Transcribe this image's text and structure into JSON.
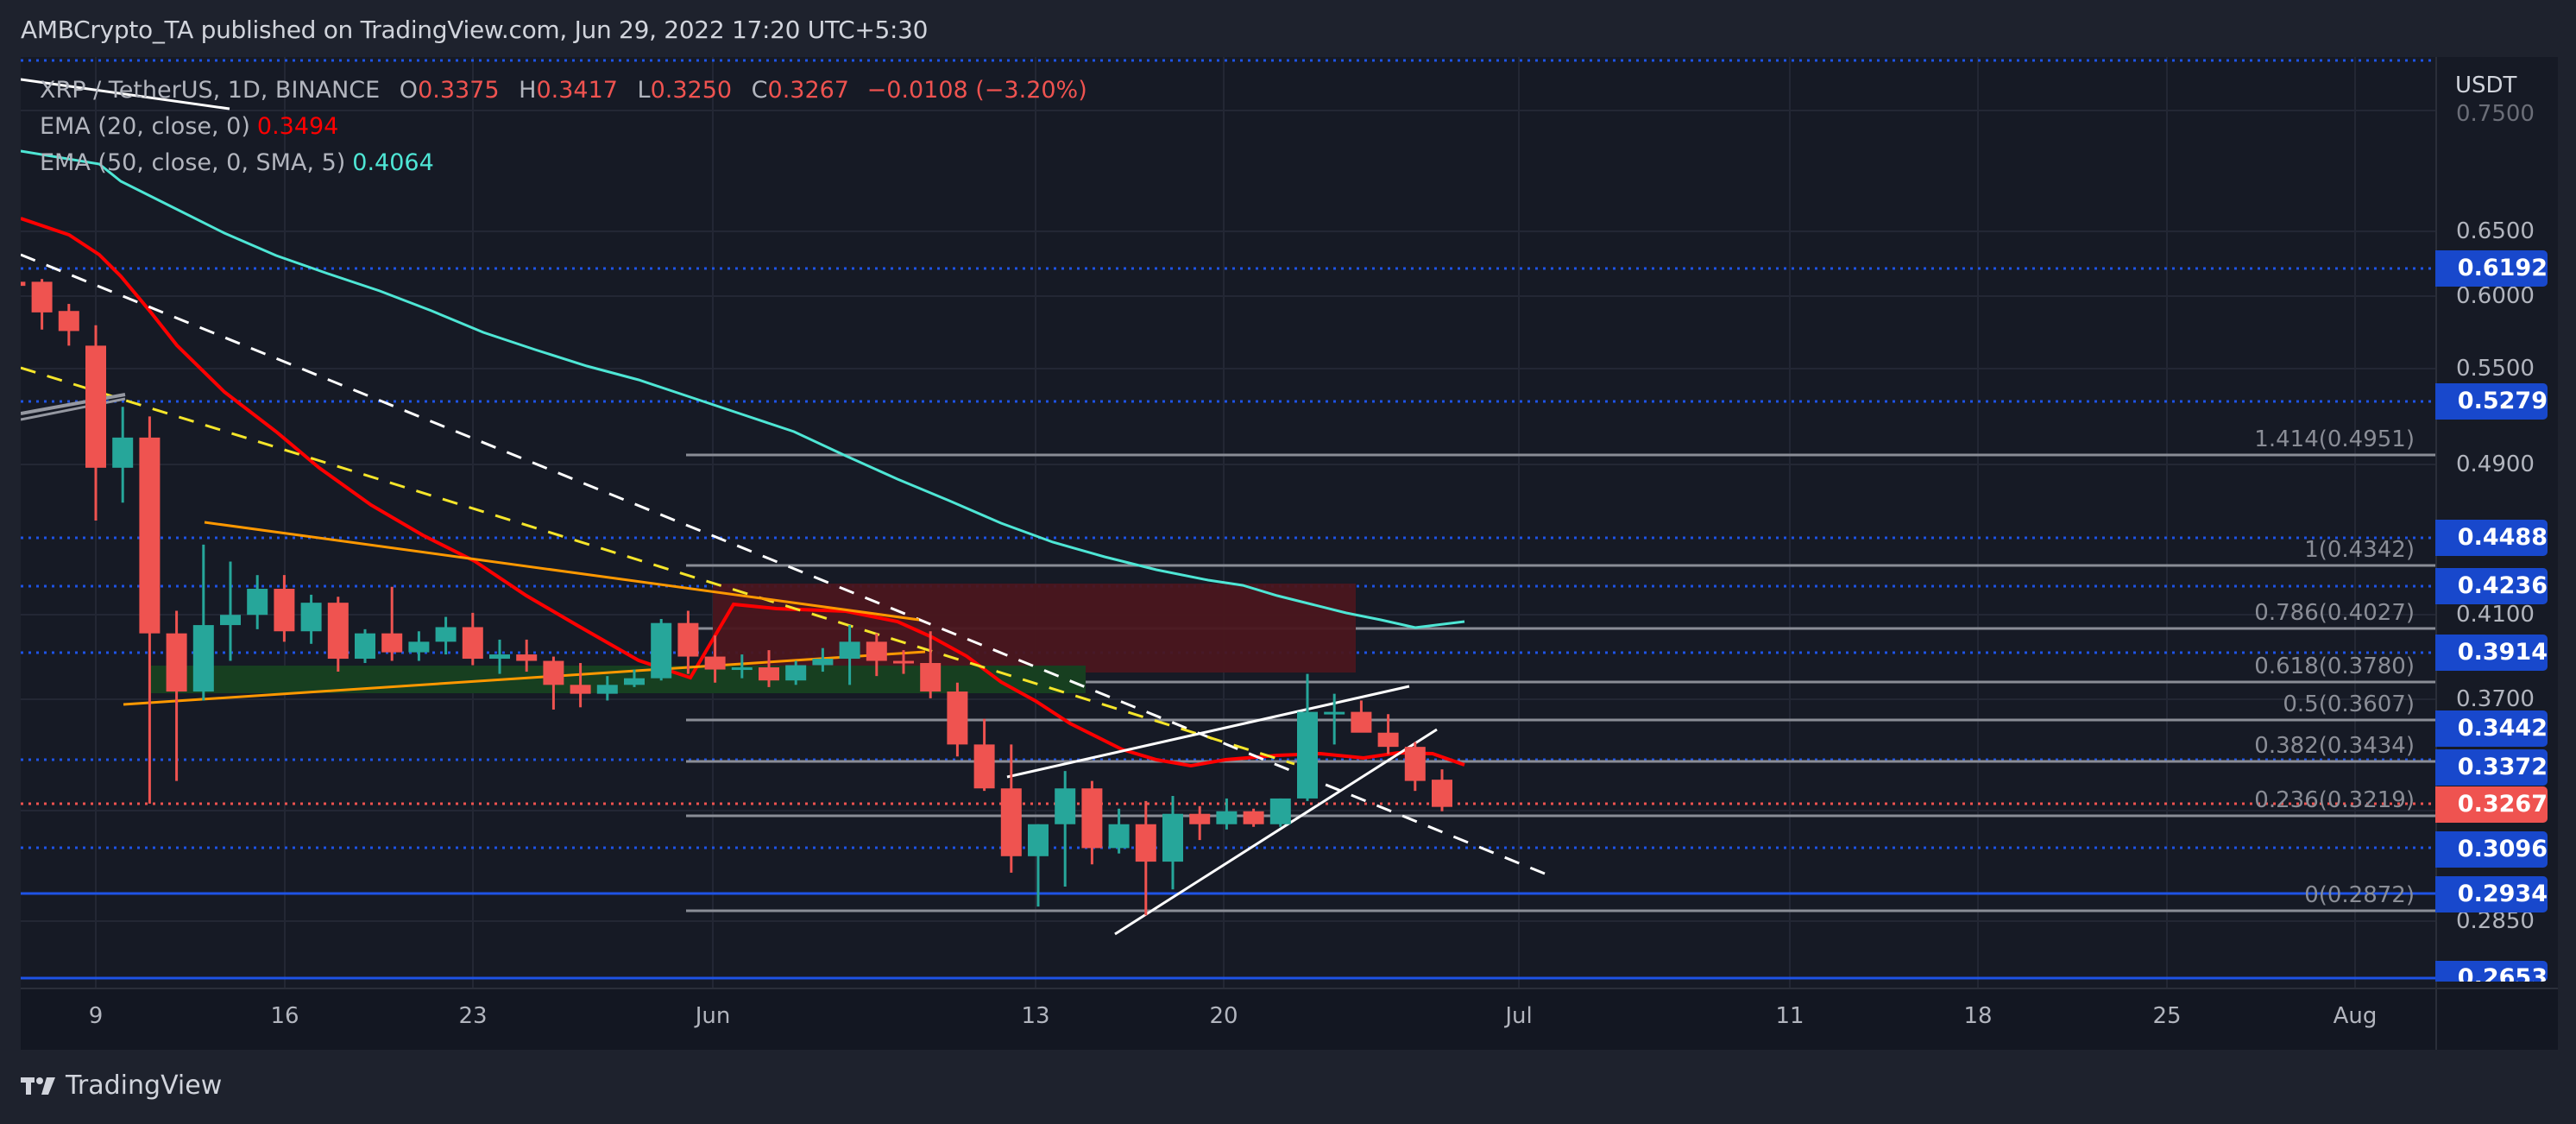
{
  "header": {
    "published": "AMBCrypto_TA published on TradingView.com, Jun 29, 2022 17:20 UTC+5:30"
  },
  "legend": {
    "symbol": "XRP / TetherUS, 1D, BINANCE",
    "open_key": "O",
    "open": "0.3375",
    "high_key": "H",
    "high": "0.3417",
    "low_key": "L",
    "low": "0.3250",
    "close_key": "C",
    "close": "0.3267",
    "change": "−0.0108 (−3.20%)",
    "ema20_label": "EMA (20, close, 0)",
    "ema20_value": "0.3494",
    "ema50_label": "EMA (50, close, 0, SMA, 5)",
    "ema50_value": "0.4064"
  },
  "price_axis": {
    "currency": "USDT",
    "ticks": [
      "0.7500",
      "0.6500",
      "0.6000",
      "0.5500",
      "0.4900",
      "0.4100",
      "0.3700",
      "0.2850"
    ],
    "badges": [
      "0.6192",
      "0.5279",
      "0.4488",
      "0.4236",
      "0.3914",
      "0.3442",
      "0.3372",
      "0.3267",
      "0.3096",
      "0.2934",
      "0.2653"
    ],
    "current_price": "0.3267"
  },
  "time_axis": {
    "labels": [
      "9",
      "16",
      "23",
      "Jun",
      "13",
      "20",
      "Jul",
      "11",
      "18",
      "25",
      "Aug"
    ]
  },
  "fib_levels": [
    "1.414(0.4951)",
    "1(0.4342)",
    "0.786(0.4027)",
    "0.618(0.3780)",
    "0.5(0.3607)",
    "0.382(0.3434)",
    "0.236(0.3219)",
    "0(0.2872)"
  ],
  "footer": {
    "brand": "TradingView"
  },
  "colors": {
    "bull": "#26a69a",
    "bear": "#ef5350",
    "ema20": "#ff0000",
    "ema50": "#4ee6d5",
    "level_line": "#1e53e5",
    "background": "#161a25"
  },
  "chart_data": {
    "type": "candlestick",
    "title": "XRP / TetherUS, 1D, BINANCE",
    "xlabel": "",
    "ylabel": "USDT",
    "y_scale": "log",
    "ylim": [
      0.26,
      0.78
    ],
    "x_ticks": [
      "9",
      "16",
      "23",
      "Jun",
      "13",
      "20",
      "Jul",
      "11",
      "18",
      "25",
      "Aug"
    ],
    "y_ticks": [
      0.75,
      0.65,
      0.6,
      0.55,
      0.49,
      0.41,
      0.37,
      0.285
    ],
    "ohlc_last": {
      "open": 0.3375,
      "high": 0.3417,
      "low": 0.325,
      "close": 0.3267,
      "change": -0.0108,
      "change_pct": -3.2
    },
    "candles": [
      {
        "date": "2022-05-06",
        "o": 0.612,
        "h": 0.613,
        "l": 0.605,
        "c": 0.609
      },
      {
        "date": "2022-05-07",
        "o": 0.612,
        "h": 0.614,
        "l": 0.578,
        "c": 0.59
      },
      {
        "date": "2022-05-08",
        "o": 0.591,
        "h": 0.596,
        "l": 0.567,
        "c": 0.577
      },
      {
        "date": "2022-05-09",
        "o": 0.567,
        "h": 0.581,
        "l": 0.46,
        "c": 0.49
      },
      {
        "date": "2022-05-10",
        "o": 0.49,
        "h": 0.527,
        "l": 0.47,
        "c": 0.508
      },
      {
        "date": "2022-05-11",
        "o": 0.508,
        "h": 0.521,
        "l": 0.328,
        "c": 0.402
      },
      {
        "date": "2022-05-12",
        "o": 0.402,
        "h": 0.413,
        "l": 0.337,
        "c": 0.375
      },
      {
        "date": "2022-05-13",
        "o": 0.375,
        "h": 0.447,
        "l": 0.371,
        "c": 0.406
      },
      {
        "date": "2022-05-14",
        "o": 0.406,
        "h": 0.438,
        "l": 0.389,
        "c": 0.411
      },
      {
        "date": "2022-05-15",
        "o": 0.411,
        "h": 0.431,
        "l": 0.404,
        "c": 0.424
      },
      {
        "date": "2022-05-16",
        "o": 0.424,
        "h": 0.431,
        "l": 0.398,
        "c": 0.403
      },
      {
        "date": "2022-05-17",
        "o": 0.403,
        "h": 0.421,
        "l": 0.397,
        "c": 0.417
      },
      {
        "date": "2022-05-18",
        "o": 0.417,
        "h": 0.42,
        "l": 0.384,
        "c": 0.39
      },
      {
        "date": "2022-05-19",
        "o": 0.39,
        "h": 0.404,
        "l": 0.388,
        "c": 0.402
      },
      {
        "date": "2022-05-20",
        "o": 0.402,
        "h": 0.425,
        "l": 0.389,
        "c": 0.393
      },
      {
        "date": "2022-05-21",
        "o": 0.393,
        "h": 0.403,
        "l": 0.389,
        "c": 0.398
      },
      {
        "date": "2022-05-22",
        "o": 0.398,
        "h": 0.41,
        "l": 0.392,
        "c": 0.405
      },
      {
        "date": "2022-05-23",
        "o": 0.405,
        "h": 0.412,
        "l": 0.387,
        "c": 0.39
      },
      {
        "date": "2022-05-24",
        "o": 0.39,
        "h": 0.399,
        "l": 0.383,
        "c": 0.392
      },
      {
        "date": "2022-05-25",
        "o": 0.392,
        "h": 0.399,
        "l": 0.384,
        "c": 0.389
      },
      {
        "date": "2022-05-26",
        "o": 0.389,
        "h": 0.391,
        "l": 0.367,
        "c": 0.378
      },
      {
        "date": "2022-05-27",
        "o": 0.378,
        "h": 0.388,
        "l": 0.368,
        "c": 0.374
      },
      {
        "date": "2022-05-28",
        "o": 0.374,
        "h": 0.382,
        "l": 0.371,
        "c": 0.378
      },
      {
        "date": "2022-05-29",
        "o": 0.378,
        "h": 0.385,
        "l": 0.377,
        "c": 0.381
      },
      {
        "date": "2022-05-30",
        "o": 0.381,
        "h": 0.409,
        "l": 0.38,
        "c": 0.407
      },
      {
        "date": "2022-05-31",
        "o": 0.407,
        "h": 0.413,
        "l": 0.383,
        "c": 0.391
      },
      {
        "date": "2022-06-01",
        "o": 0.391,
        "h": 0.401,
        "l": 0.379,
        "c": 0.385
      },
      {
        "date": "2022-06-02",
        "o": 0.385,
        "h": 0.392,
        "l": 0.381,
        "c": 0.386
      },
      {
        "date": "2022-06-03",
        "o": 0.386,
        "h": 0.394,
        "l": 0.377,
        "c": 0.38
      },
      {
        "date": "2022-06-04",
        "o": 0.38,
        "h": 0.389,
        "l": 0.378,
        "c": 0.387
      },
      {
        "date": "2022-06-05",
        "o": 0.387,
        "h": 0.395,
        "l": 0.384,
        "c": 0.39
      },
      {
        "date": "2022-06-06",
        "o": 0.39,
        "h": 0.406,
        "l": 0.378,
        "c": 0.398
      },
      {
        "date": "2022-06-07",
        "o": 0.398,
        "h": 0.402,
        "l": 0.382,
        "c": 0.389
      },
      {
        "date": "2022-06-08",
        "o": 0.389,
        "h": 0.394,
        "l": 0.383,
        "c": 0.388
      },
      {
        "date": "2022-06-09",
        "o": 0.388,
        "h": 0.403,
        "l": 0.372,
        "c": 0.375
      },
      {
        "date": "2022-06-10",
        "o": 0.375,
        "h": 0.379,
        "l": 0.347,
        "c": 0.352
      },
      {
        "date": "2022-06-11",
        "o": 0.352,
        "h": 0.363,
        "l": 0.333,
        "c": 0.334
      },
      {
        "date": "2022-06-12",
        "o": 0.334,
        "h": 0.352,
        "l": 0.302,
        "c": 0.308
      },
      {
        "date": "2022-06-13",
        "o": 0.308,
        "h": 0.32,
        "l": 0.29,
        "c": 0.32
      },
      {
        "date": "2022-06-14",
        "o": 0.32,
        "h": 0.341,
        "l": 0.297,
        "c": 0.334
      },
      {
        "date": "2022-06-15",
        "o": 0.334,
        "h": 0.337,
        "l": 0.305,
        "c": 0.311
      },
      {
        "date": "2022-06-16",
        "o": 0.311,
        "h": 0.326,
        "l": 0.309,
        "c": 0.32
      },
      {
        "date": "2022-06-17",
        "o": 0.32,
        "h": 0.329,
        "l": 0.287,
        "c": 0.306
      },
      {
        "date": "2022-06-18",
        "o": 0.306,
        "h": 0.331,
        "l": 0.296,
        "c": 0.324
      },
      {
        "date": "2022-06-19",
        "o": 0.324,
        "h": 0.327,
        "l": 0.314,
        "c": 0.32
      },
      {
        "date": "2022-06-20",
        "o": 0.32,
        "h": 0.33,
        "l": 0.318,
        "c": 0.325
      },
      {
        "date": "2022-06-21",
        "o": 0.325,
        "h": 0.326,
        "l": 0.319,
        "c": 0.32
      },
      {
        "date": "2022-06-22",
        "o": 0.32,
        "h": 0.33,
        "l": 0.319,
        "c": 0.33
      },
      {
        "date": "2022-06-23",
        "o": 0.33,
        "h": 0.383,
        "l": 0.329,
        "c": 0.366
      },
      {
        "date": "2022-06-24",
        "o": 0.366,
        "h": 0.374,
        "l": 0.352,
        "c": 0.366
      },
      {
        "date": "2022-06-25",
        "o": 0.366,
        "h": 0.371,
        "l": 0.36,
        "c": 0.357
      },
      {
        "date": "2022-06-26",
        "o": 0.357,
        "h": 0.365,
        "l": 0.348,
        "c": 0.351
      },
      {
        "date": "2022-06-27",
        "o": 0.351,
        "h": 0.353,
        "l": 0.333,
        "c": 0.337
      },
      {
        "date": "2022-06-28",
        "o": 0.3375,
        "h": 0.3417,
        "l": 0.325,
        "c": 0.3267
      }
    ],
    "series": [
      {
        "name": "EMA (20, close, 0)",
        "last": 0.3494
      },
      {
        "name": "EMA (50, close, 0, SMA, 5)",
        "last": 0.4064
      }
    ],
    "horizontal_levels": [
      0.6192,
      0.5279,
      0.4488,
      0.4236,
      0.3914,
      0.3442,
      0.3372,
      0.3096,
      0.2934,
      0.2653
    ],
    "fibonacci": [
      {
        "ratio": 1.414,
        "price": 0.4951
      },
      {
        "ratio": 1,
        "price": 0.4342
      },
      {
        "ratio": 0.786,
        "price": 0.4027
      },
      {
        "ratio": 0.618,
        "price": 0.378
      },
      {
        "ratio": 0.5,
        "price": 0.3607
      },
      {
        "ratio": 0.382,
        "price": 0.3434
      },
      {
        "ratio": 0.236,
        "price": 0.3219
      },
      {
        "ratio": 0,
        "price": 0.2872
      }
    ],
    "zones": [
      {
        "type": "supply",
        "color": "#b71c1c",
        "from": "2022-06-01",
        "to": "2022-06-25",
        "price_range": [
          0.395,
          0.4236
        ]
      },
      {
        "type": "demand",
        "color": "#1b5e20",
        "from": "2022-05-11",
        "to": "2022-06-16",
        "price_range": [
          0.37,
          0.388
        ]
      }
    ],
    "annotations": [
      "descending triangle (orange)",
      "descending trendlines (white/yellow dashed)",
      "rising wedge (white)"
    ]
  }
}
